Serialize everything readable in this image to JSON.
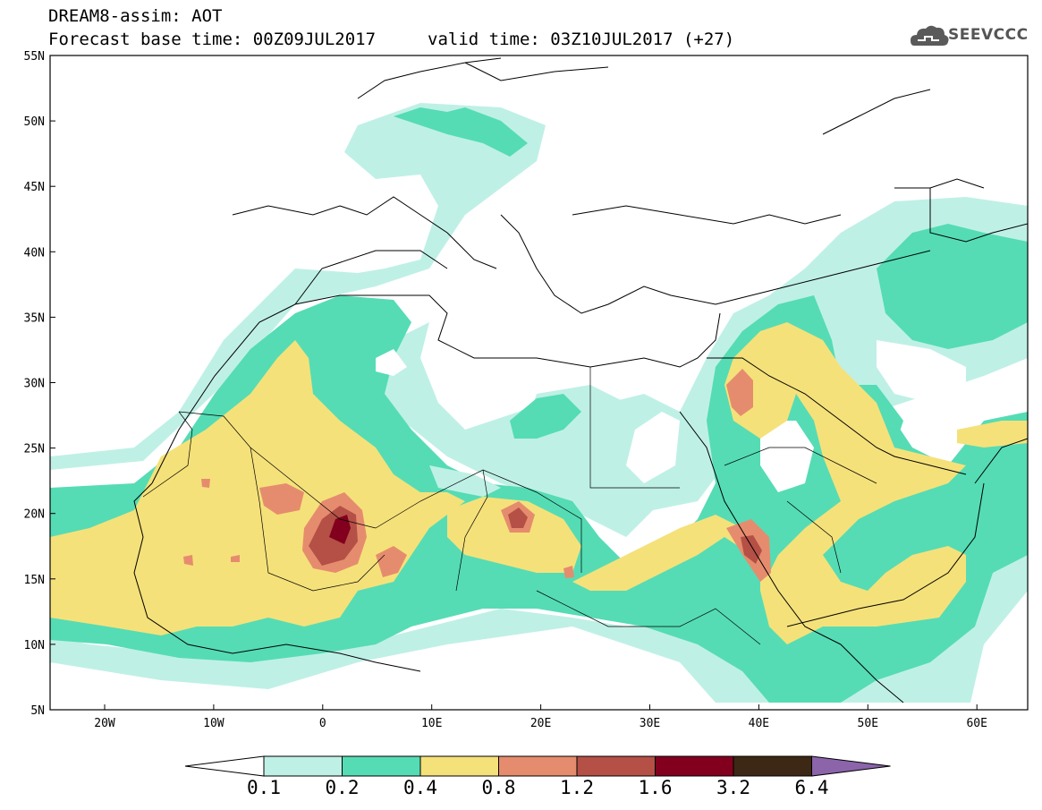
{
  "header": {
    "title": "DREAM8-assim: AOT",
    "base_time": "Forecast base time: 00Z09JUL2017",
    "valid_time": "valid time: 03Z10JUL2017 (+27)"
  },
  "logo": {
    "text": "SEEVCCC",
    "icon": "cloud-icon"
  },
  "axes": {
    "lat_labels": [
      "55N",
      "50N",
      "45N",
      "40N",
      "35N",
      "30N",
      "25N",
      "20N",
      "15N",
      "10N",
      "5N"
    ],
    "lon_labels": [
      "20W",
      "10W",
      "0",
      "10E",
      "20E",
      "30E",
      "40E",
      "50E",
      "60E"
    ]
  },
  "colorbar": {
    "labels": [
      "0.1",
      "0.2",
      "0.4",
      "0.8",
      "1.2",
      "1.6",
      "3.2",
      "6.4"
    ],
    "colors": [
      "#bff0e6",
      "#55dcb4",
      "#f5e17a",
      "#e68c6e",
      "#b45046",
      "#82001e",
      "#3c2814",
      "#8c64aa"
    ]
  },
  "fill_colors": {
    "c1": "#bff0e6",
    "c2": "#55dcb4",
    "c3": "#f5e17a",
    "c4": "#e68c6e",
    "c5": "#b45046",
    "c6": "#82001e"
  }
}
